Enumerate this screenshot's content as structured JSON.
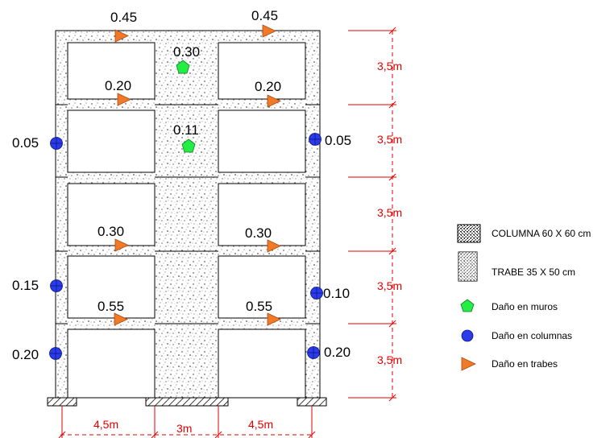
{
  "colors": {
    "dimension": "#e00000",
    "wall_damage": "#22ee44",
    "column_damage": "#2b3bea",
    "beam_damage": "#f07a28",
    "concrete_dots": "#222222",
    "frame_line": "#000000"
  },
  "markers": {
    "beam_top_left": "0.45",
    "beam_top_right": "0.45",
    "wall_upper": "0.30",
    "beam_f4_left": "0.20",
    "beam_f4_right": "0.20",
    "wall_lower": "0.11",
    "col_f4_left": "0.05",
    "col_f4_right": "0.05",
    "beam_f2_left": "0.30",
    "beam_f2_right": "0.30",
    "col_f2_left": "0.15",
    "col_f2_right": "0.10",
    "beam_f1_left": "0.55",
    "beam_f1_right": "0.55",
    "col_f1_left": "0.20",
    "col_f1_right": "0.20"
  },
  "dimensions": {
    "story_heights": [
      "3,5m",
      "3,5m",
      "3,5m",
      "3,5m",
      "3,5m"
    ],
    "bay_widths": [
      "4,5m",
      "3m",
      "4,5m"
    ]
  },
  "legend": [
    {
      "icon": "column-hatch-icon",
      "label": "COLUMNA 60 X 60 cm"
    },
    {
      "icon": "beam-hatch-icon",
      "label": "TRABE 35 X 50 cm"
    },
    {
      "icon": "pentagon-icon",
      "label": "Daño en muros"
    },
    {
      "icon": "circle-icon",
      "label": "Daño en columnas"
    },
    {
      "icon": "triangle-icon",
      "label": "Daño en trabes"
    }
  ]
}
